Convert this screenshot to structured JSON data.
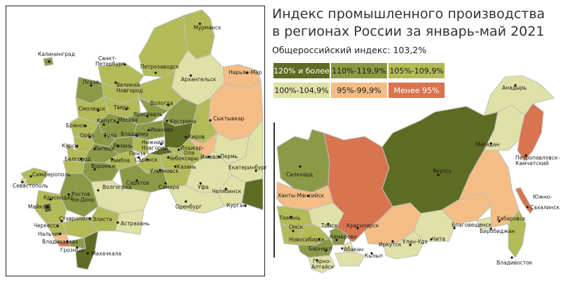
{
  "title_line1": "Индекс промышленного производства",
  "title_line2": "в регионах России за январь-май 2021",
  "subtitle": "Общероссийский индекс: 103,2%",
  "legend": [
    {
      "label": "120% и более",
      "color": "#5e6b22",
      "text_color": "#ffffff"
    },
    {
      "label": "110%-119,9%",
      "color": "#8c9a47",
      "text_color": "#1a1a1a"
    },
    {
      "label": "105%-109,9%",
      "color": "#b3bb58",
      "text_color": "#1a1a1a"
    },
    {
      "label": "100%-104,9%",
      "color": "#dfe1a6",
      "text_color": "#1a1a1a"
    },
    {
      "label": "95%-99,9%",
      "color": "#f3bd85",
      "text_color": "#1a1a1a"
    },
    {
      "label": "Менее 95%",
      "color": "#d8744f",
      "text_color": "#ffffff"
    }
  ],
  "colors": {
    "background": "#ffffff",
    "border": "#bfbfbf",
    "text": "#1a1a1a",
    "frame": "#222222"
  },
  "cities": {
    "kaliningrad": "Калининград",
    "murmansk": "Мурманск",
    "spb": "Санкт-Петербург",
    "petrozavodsk": "Петрозаводск",
    "arkhangelsk": "Архангельск",
    "naryan_mar": "Нарьян-Мар",
    "pskov": "Псков",
    "novgorod": "Великий Новгород",
    "smolensk": "Смоленск",
    "tver": "Тверь",
    "vologda": "Вологда",
    "yaroslavl": "Ярославль",
    "kostroma": "Кострома",
    "bryansk": "Брянск",
    "kaluga": "Калуга",
    "moscow": "Москва",
    "ivanovo": "Иваново",
    "syktyvkar": "Сыктывкар",
    "orel": "Орёл",
    "tula": "Тула",
    "vladimir": "Владимир",
    "kirov": "Киров",
    "kursk": "Курск",
    "ryazan": "Рязань",
    "nn": "Нижний Новгород",
    "ioshkar": "Йошкар-Ола",
    "lipetsk": "Липецк",
    "belgorod": "Белгород",
    "tambov": "Тамбов",
    "penza": "Пенза",
    "saransk": "Саранск",
    "cheboksary": "Чебоксары",
    "izhevsk": "Ижевск",
    "perm": "Пермь",
    "voronezh": "Воронеж",
    "ulyanovsk": "Ульяновск",
    "kazan": "Казань",
    "simferopol": "Симферополь",
    "saratov": "Саратов",
    "samara": "Самара",
    "ekaterinburg": "Екатеринбург",
    "sevastopol": "Севастополь",
    "rostov": "Ростов-на-Дону",
    "volgograd": "Волгоград",
    "ufa": "Уфа",
    "chelyabinsk": "Челябинск",
    "krasnodar": "Краснодар",
    "maykop": "Майкоп",
    "orenburg": "Оренбург",
    "kurgan": "Курган",
    "stavropol": "Ставрополь",
    "elista": "Элиста",
    "astrakhan": "Астрахань",
    "cherkessk": "Черкесск",
    "nalchik": "Нальчик",
    "vladikavkaz": "Владикавказ",
    "grozny": "Грозный",
    "makhachkala": "Махачкала",
    "anadyr": "Анадырь",
    "salekhard": "Салехард",
    "magadan": "Магадан",
    "petropavlovsk": "Петропавловск-Камчатский",
    "yakutsk": "Якутск",
    "khanty": "Ханты-Мансийск",
    "yuzhno": "Южно-Сахалинск",
    "tyumen": "Тюмень",
    "tomsk": "Томск",
    "krasnoyarsk": "Красноярск",
    "khabarovsk": "Хабаровск",
    "omsk": "Омск",
    "blagoveshchensk": "Благовещенск",
    "novosibirsk": "Новосибирск",
    "kemerovo": "Кемерово",
    "birobidzhan": "Биробиджан",
    "barnaul": "Барнаул",
    "abakan": "Абакан",
    "irkutsk": "Иркутск",
    "ulan_ude": "Улан-Удэ",
    "chita": "Чита",
    "kyzyl": "Кызыл",
    "gorno": "Горно-Алтайск",
    "vladivostok": "Владивосток"
  }
}
